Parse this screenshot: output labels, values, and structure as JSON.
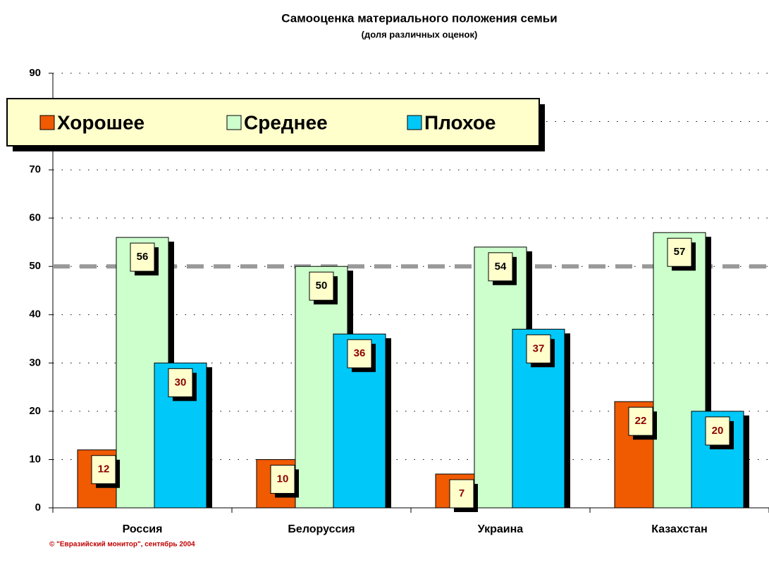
{
  "chart_data": {
    "type": "bar",
    "title": "Самооценка материального положения семьи",
    "subtitle": "(доля различных оценок)",
    "categories": [
      "Россия",
      "Белоруссия",
      "Украина",
      "Казахстан"
    ],
    "series": [
      {
        "name": "Хорошее",
        "color": "#f05a00",
        "values": [
          12,
          10,
          7,
          22
        ]
      },
      {
        "name": "Среднее",
        "color": "#ccffcc",
        "values": [
          56,
          50,
          54,
          57
        ]
      },
      {
        "name": "Плохое",
        "color": "#00c8f8",
        "values": [
          30,
          36,
          37,
          20
        ]
      }
    ],
    "ylim": [
      0,
      90
    ],
    "yticks": [
      0,
      10,
      20,
      30,
      40,
      50,
      60,
      70,
      80,
      90
    ],
    "grid": true,
    "reference_line": 50,
    "legend": "top-left",
    "footer": "© \"Евразийский монитор\", сентябрь 2004"
  }
}
